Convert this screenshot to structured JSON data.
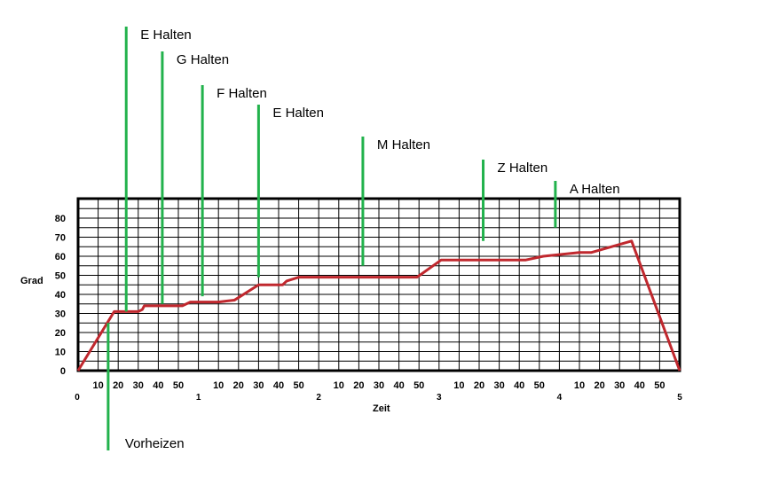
{
  "chart_data": {
    "type": "line",
    "title": "",
    "xlabel": "Zeit",
    "ylabel": "Grad",
    "yticks": [
      "0",
      "10",
      "20",
      "30",
      "40",
      "50",
      "60",
      "70",
      "80"
    ],
    "ylim": [
      0,
      90
    ],
    "hour_labels": [
      "0",
      "1",
      "2",
      "3",
      "4",
      "5"
    ],
    "minute_labels": [
      "10",
      "20",
      "30",
      "40",
      "50"
    ],
    "x_unit": "minutes",
    "xlim": [
      0,
      300
    ],
    "grid": true,
    "colors": {
      "line": "#c0282e",
      "marker": "#22b24c",
      "grid": "#000000"
    },
    "series": [
      {
        "x": [
          0,
          18,
          30,
          32,
          33,
          48,
          52,
          56,
          70,
          78,
          90,
          102,
          104,
          110,
          169,
          181,
          220,
          223,
          232,
          250,
          256,
          276,
          300
        ],
        "y": [
          0,
          31,
          31,
          32,
          34,
          34,
          34,
          36,
          36,
          37,
          45,
          45,
          47,
          49,
          49,
          58,
          58,
          58,
          60,
          62,
          62,
          68,
          0
        ]
      }
    ],
    "markers": [
      {
        "label": "Vorheizen",
        "x": 15,
        "y": 25,
        "direction": "down"
      },
      {
        "label": "E  Halten",
        "x": 24,
        "y": 31,
        "direction": "up"
      },
      {
        "label": "G  Halten",
        "x": 42,
        "y": 35,
        "direction": "up"
      },
      {
        "label": "F  Halten",
        "x": 62,
        "y": 39,
        "direction": "up"
      },
      {
        "label": "E  Halten",
        "x": 90,
        "y": 49,
        "direction": "up"
      },
      {
        "label": "M Halten",
        "x": 142,
        "y": 55,
        "direction": "up"
      },
      {
        "label": "Z Halten",
        "x": 202,
        "y": 68,
        "direction": "up"
      },
      {
        "label": "A  Halten",
        "x": 238,
        "y": 75,
        "direction": "up"
      }
    ]
  }
}
